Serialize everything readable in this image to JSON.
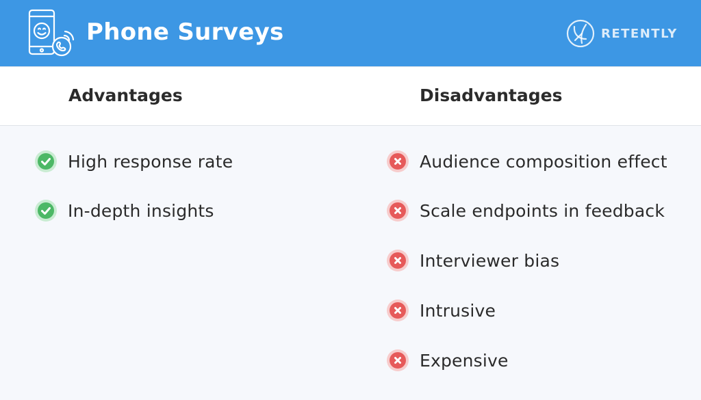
{
  "header": {
    "title": "Phone Surveys",
    "icon": "phone-smile-icon",
    "brand": "RETENTLY",
    "color": "#3d97e4"
  },
  "columns": {
    "advantages": {
      "title": "Advantages",
      "icon": "check-circle-icon",
      "color": "#4cb866",
      "items": [
        "High response rate",
        "In-depth insights"
      ]
    },
    "disadvantages": {
      "title": "Disadvantages",
      "icon": "x-circle-icon",
      "color": "#e65a5a",
      "items": [
        "Audience composition effect",
        "Scale endpoints in feedback",
        "Interviewer bias",
        "Intrusive",
        "Expensive"
      ]
    }
  }
}
